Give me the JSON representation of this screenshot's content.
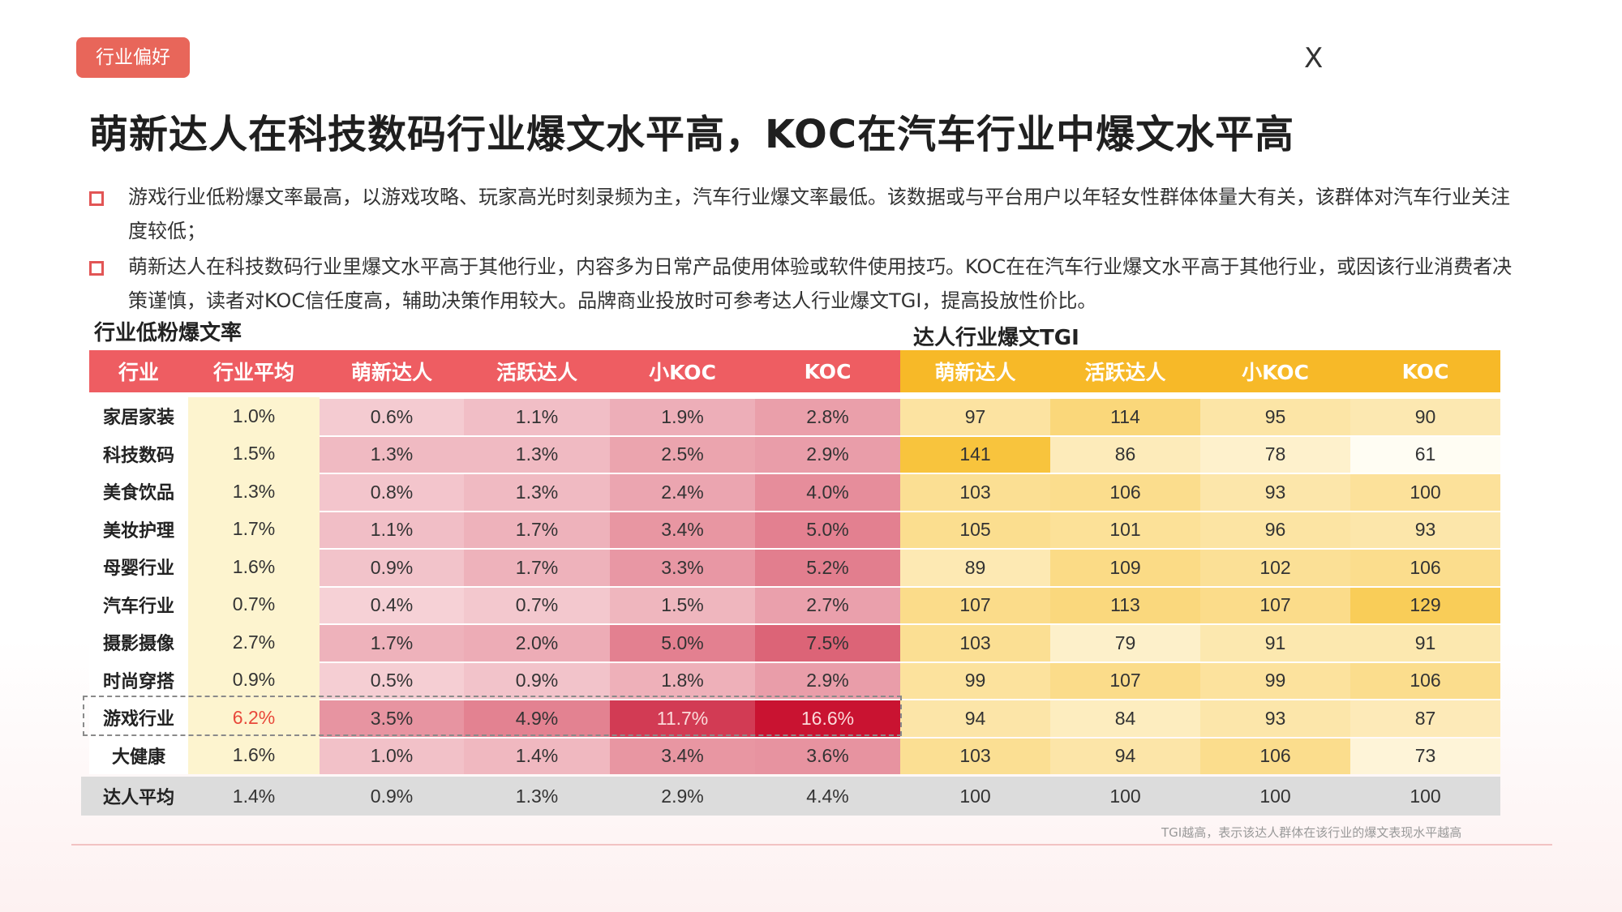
{
  "tag": "行业偏好",
  "close_label": "X",
  "title": "萌新达人在科技数码行业爆文水平高，KOC在汽车行业中爆文水平高",
  "bullets": [
    "游戏行业低粉爆文率最高，以游戏攻略、玩家高光时刻录频为主，汽车行业爆文率最低。该数据或与平台用户以年轻女性群体体量大有关，该群体对汽车行业关注度较低；",
    "萌新达人在科技数码行业里爆文水平高于其他行业，内容多为日常产品使用体验或软件使用技巧。KOC在在汽车行业爆文水平高于其他行业，或因该行业消费者决策谨慎，读者对KOC信任度高，辅助决策作用较大。品牌商业投放时可参考达人行业爆文TGI，提高投放性价比。"
  ],
  "note": "TGI越高，表示该达人群体在该行业的爆文表现水平越高",
  "colors": {
    "accent": "#e8665a",
    "header_red": "#ee5d62",
    "header_yellow": "#f7b928",
    "avg_col": "#fdf4cf",
    "highlight_red": "#e8483a"
  },
  "chart_data": [
    {
      "type": "table",
      "title": "行业低粉爆文率",
      "columns": [
        "行业",
        "行业平均",
        "萌新达人",
        "活跃达人",
        "小KOC",
        "KOC"
      ],
      "rows": [
        {
          "category": "家居家装",
          "avg": "1.0%",
          "values": [
            "0.6%",
            "1.1%",
            "1.9%",
            "2.8%"
          ]
        },
        {
          "category": "科技数码",
          "avg": "1.5%",
          "values": [
            "1.3%",
            "1.3%",
            "2.5%",
            "2.9%"
          ]
        },
        {
          "category": "美食饮品",
          "avg": "1.3%",
          "values": [
            "0.8%",
            "1.3%",
            "2.4%",
            "4.0%"
          ]
        },
        {
          "category": "美妆护理",
          "avg": "1.7%",
          "values": [
            "1.1%",
            "1.7%",
            "3.4%",
            "5.0%"
          ]
        },
        {
          "category": "母婴行业",
          "avg": "1.6%",
          "values": [
            "0.9%",
            "1.7%",
            "3.3%",
            "5.2%"
          ]
        },
        {
          "category": "汽车行业",
          "avg": "0.7%",
          "values": [
            "0.4%",
            "0.7%",
            "1.5%",
            "2.7%"
          ]
        },
        {
          "category": "摄影摄像",
          "avg": "2.7%",
          "values": [
            "1.7%",
            "2.0%",
            "5.0%",
            "7.5%"
          ]
        },
        {
          "category": "时尚穿搭",
          "avg": "0.9%",
          "values": [
            "0.5%",
            "0.9%",
            "1.8%",
            "2.9%"
          ]
        },
        {
          "category": "游戏行业",
          "avg": "6.2%",
          "values": [
            "3.5%",
            "4.9%",
            "11.7%",
            "16.6%"
          ]
        },
        {
          "category": "大健康",
          "avg": "1.6%",
          "values": [
            "1.0%",
            "1.4%",
            "3.4%",
            "3.6%"
          ]
        }
      ],
      "footer": {
        "category": "达人平均",
        "avg": "1.4%",
        "values": [
          "0.9%",
          "1.3%",
          "2.9%",
          "4.4%"
        ]
      }
    },
    {
      "type": "heatmap",
      "title": "达人行业爆文TGI",
      "columns": [
        "萌新达人",
        "活跃达人",
        "小KOC",
        "KOC"
      ],
      "rows": [
        [
          97,
          114,
          95,
          90
        ],
        [
          141,
          86,
          78,
          61
        ],
        [
          103,
          106,
          93,
          100
        ],
        [
          105,
          101,
          96,
          93
        ],
        [
          89,
          109,
          102,
          106
        ],
        [
          107,
          113,
          107,
          129
        ],
        [
          103,
          79,
          91,
          91
        ],
        [
          99,
          107,
          99,
          106
        ],
        [
          94,
          84,
          93,
          87
        ],
        [
          103,
          94,
          106,
          73
        ]
      ],
      "footer": [
        100,
        100,
        100,
        100
      ]
    }
  ]
}
